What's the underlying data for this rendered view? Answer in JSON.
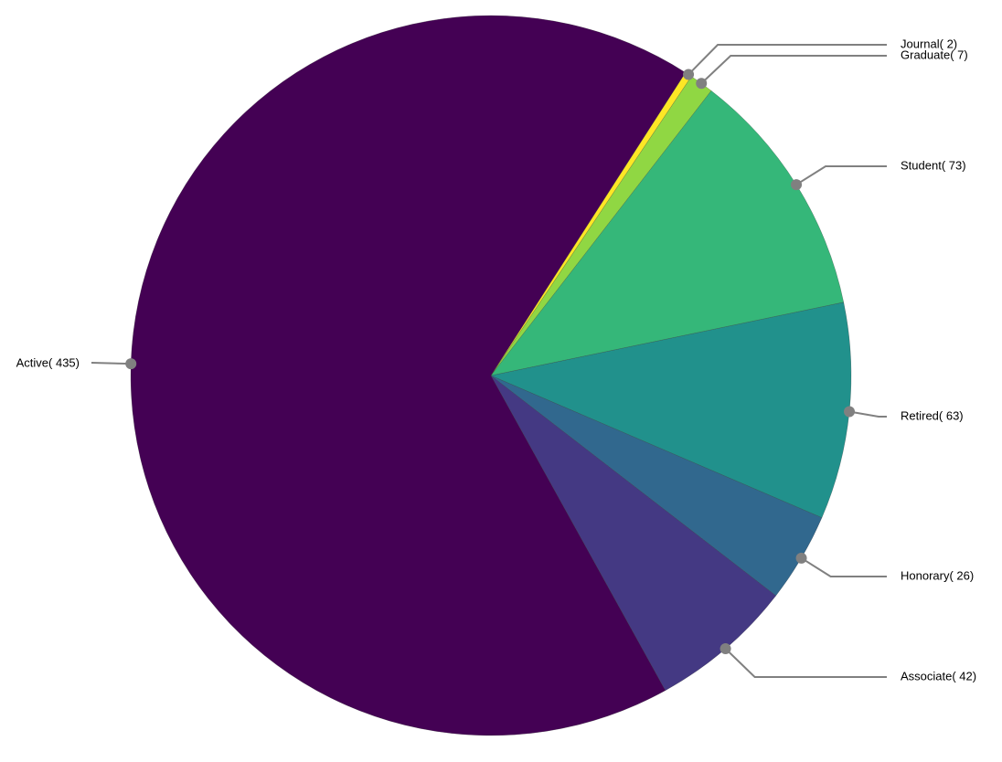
{
  "chart_data": {
    "type": "pie",
    "values": [
      435,
      42,
      26,
      63,
      73,
      7,
      2
    ],
    "value_labels": [
      "Active( 435)",
      "Associate( 42)",
      "Honorary( 26)",
      "Retired( 63)",
      "Student( 73)",
      "Graduate( 7)",
      "Journal( 2)"
    ],
    "colors": [
      "#440154",
      "#443983",
      "#31688e",
      "#21918c",
      "#35b779",
      "#90d743",
      "#fde725"
    ]
  }
}
